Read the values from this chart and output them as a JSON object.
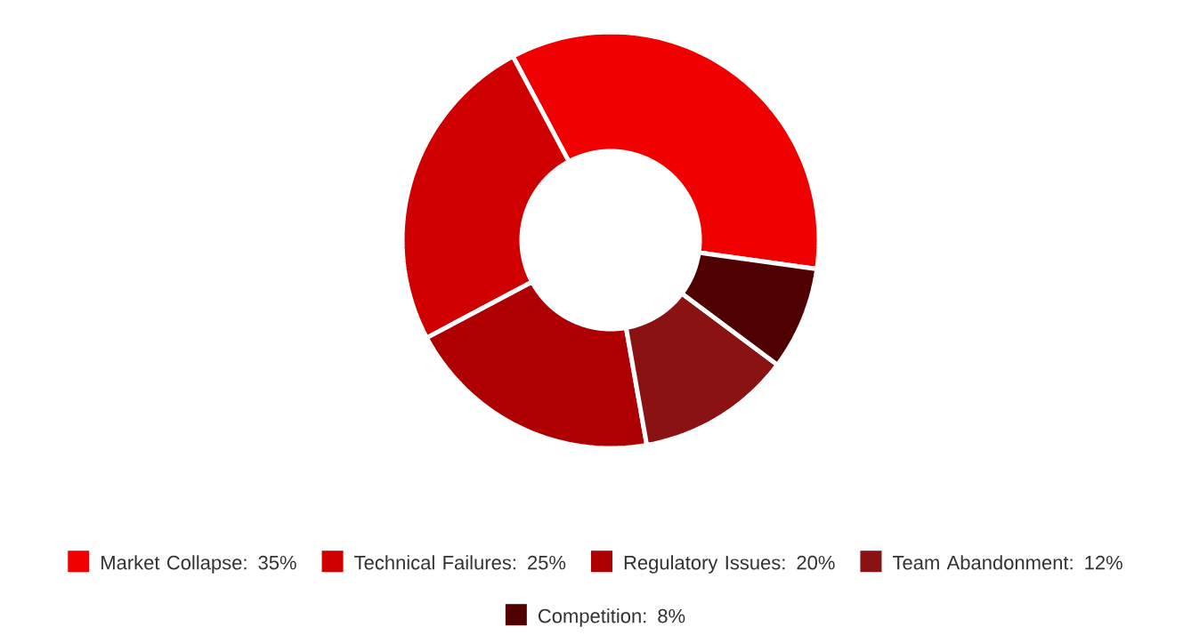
{
  "chart_data": {
    "type": "donut",
    "categories": [
      "Market Collapse: 35%",
      "Technical Failures: 25%",
      "Regulatory Issues: 20%",
      "Team Abandonment: 12%",
      "Competition: 8%"
    ],
    "values": [
      35,
      25,
      20,
      12,
      8
    ],
    "colors": [
      "#f00000",
      "#d00000",
      "#ae0000",
      "#8b1212",
      "#4f0000"
    ],
    "legend": "bottom"
  }
}
